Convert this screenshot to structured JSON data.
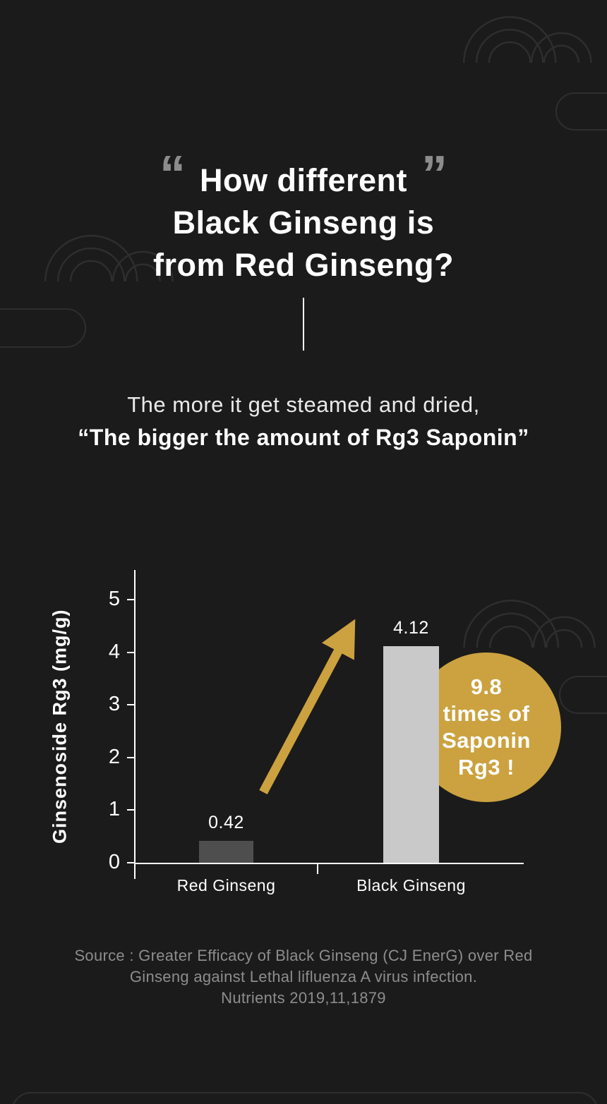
{
  "page": {
    "background": "#1b1b1b",
    "ornament_color": "#2e2e2e",
    "accent_gold": "#cba23f"
  },
  "header": {
    "quote_open": "“",
    "quote_close": "”",
    "lines": [
      "How different",
      "Black Ginseng is",
      "from Red Ginseng?"
    ]
  },
  "subtitle": {
    "lines": [
      "The more it get steamed and dried,",
      "“The bigger the amount of Rg3 Saponin”"
    ]
  },
  "chart_data": {
    "type": "bar",
    "title": "",
    "categories": [
      "Red Ginseng",
      "Black Ginseng"
    ],
    "values": [
      0.42,
      4.12
    ],
    "value_labels": [
      "0.42",
      "4.12"
    ],
    "xlabel": "",
    "ylabel": "Ginsenoside Rg3 (mg/g)",
    "ylim": [
      0,
      5
    ],
    "yticks": [
      0,
      1,
      2,
      3,
      4,
      5
    ],
    "grid": false,
    "legend": "none",
    "bar_colors": [
      "#4e4e4e",
      "#c9c9c9"
    ],
    "annotation_badge": "9.8 times of Saponin Rg3 !",
    "annotation_arrow_color": "#cba23f"
  },
  "badge": {
    "background": "#cba23f",
    "lines": [
      "9.8",
      "times of",
      "Saponin",
      "Rg3 !"
    ]
  },
  "source": {
    "lines": [
      "Source : Greater Efficacy of Black Ginseng (CJ EnerG) over Red",
      "Ginseng against Lethal lifluenza A virus infection.",
      "Nutrients 2019,11,1879"
    ]
  }
}
